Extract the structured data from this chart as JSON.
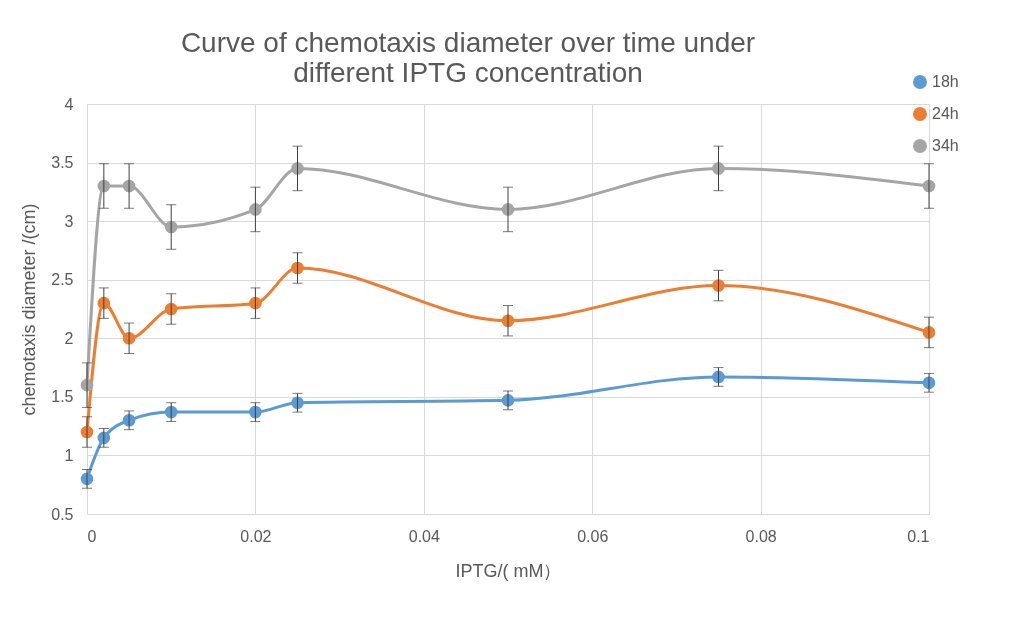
{
  "chart_data": {
    "type": "line",
    "title": "Curve of chemotaxis diameter over time under different IPTG concentration",
    "xlabel": "IPTG/( mM）",
    "ylabel": "chemotaxis diameter /(cm)",
    "x": [
      0,
      0.002,
      0.005,
      0.01,
      0.02,
      0.025,
      0.05,
      0.075,
      0.1
    ],
    "series": [
      {
        "name": "18h",
        "color": "#5b9bd5",
        "values": [
          0.8,
          1.15,
          1.3,
          1.37,
          1.37,
          1.45,
          1.47,
          1.67,
          1.62
        ],
        "errors": [
          0.08,
          0.08,
          0.08,
          0.08,
          0.08,
          0.08,
          0.08,
          0.08,
          0.08
        ]
      },
      {
        "name": "24h",
        "color": "#ed7d31",
        "values": [
          1.2,
          2.3,
          2.0,
          2.25,
          2.3,
          2.6,
          2.15,
          2.45,
          2.05
        ],
        "errors": [
          0.13,
          0.13,
          0.13,
          0.13,
          0.13,
          0.13,
          0.13,
          0.13,
          0.13
        ]
      },
      {
        "name": "34h",
        "color": "#a5a5a5",
        "values": [
          1.6,
          3.3,
          3.3,
          2.95,
          3.1,
          3.45,
          3.1,
          3.45,
          3.3
        ],
        "errors": [
          0.19,
          0.19,
          0.19,
          0.19,
          0.19,
          0.19,
          0.19,
          0.19,
          0.19
        ]
      }
    ],
    "xlim": [
      0,
      0.1
    ],
    "xticks": [
      0,
      0.02,
      0.04,
      0.06,
      0.08,
      0.1
    ],
    "ylim": [
      0.5,
      4
    ],
    "yticks": [
      0.5,
      1,
      1.5,
      2,
      2.5,
      3,
      3.5,
      4
    ],
    "grid": true,
    "legend": "top right",
    "marker": "circle",
    "line_style": "solid"
  }
}
